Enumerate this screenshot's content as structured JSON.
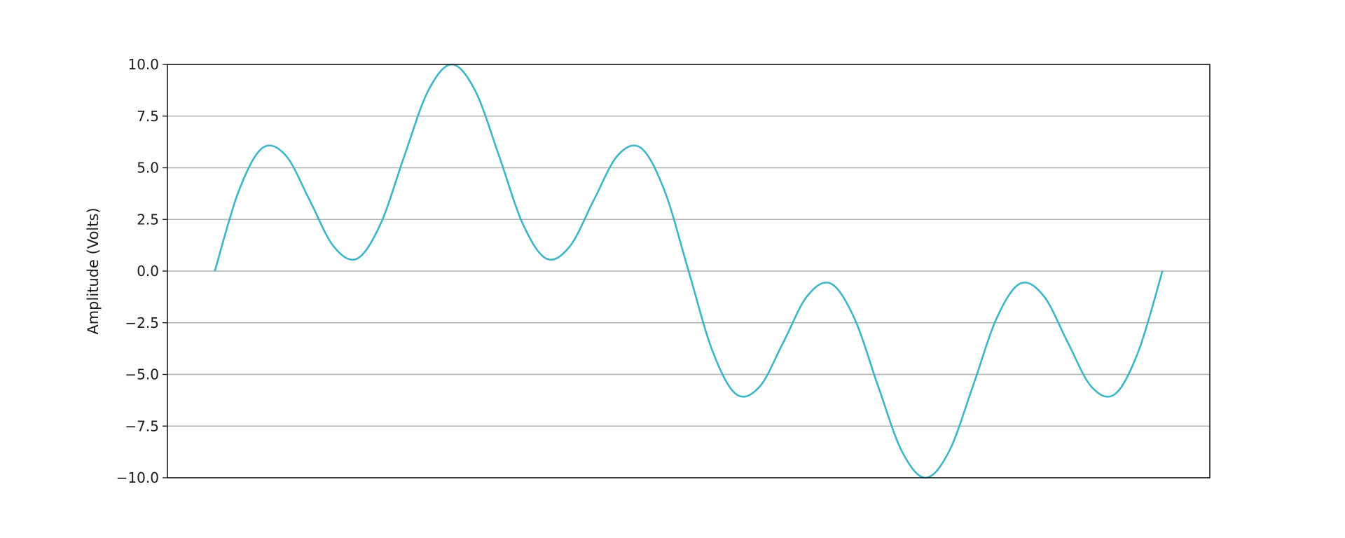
{
  "chart_data": {
    "type": "line",
    "title": "",
    "xlabel": "",
    "ylabel": "Amplitude (Volts)",
    "ylim": [
      -10,
      10
    ],
    "yticks": [
      "−10.0",
      "−7.5",
      "−5.0",
      "−2.5",
      "0.0",
      "2.5",
      "5.0",
      "7.5",
      "10.0"
    ],
    "ytick_values": [
      -10,
      -7.5,
      -5,
      -2.5,
      0,
      2.5,
      5,
      7.5,
      10
    ],
    "xticks_shown": false,
    "grid": "horizontal",
    "legend": "none",
    "line_color": "#3db5c9",
    "grid_color": "#b0b0b0",
    "series": [
      {
        "values": [
          0,
          3.84,
          5.95,
          5.59,
          3.44,
          1.22,
          0.6,
          2.29,
          5.57,
          8.71,
          10.0,
          8.71,
          5.57,
          2.29,
          0.6,
          1.22,
          3.44,
          5.59,
          5.95,
          3.84,
          0,
          -3.84,
          -5.95,
          -5.59,
          -3.44,
          -1.22,
          -0.6,
          -2.29,
          -5.57,
          -8.71,
          -10.0,
          -8.71,
          -5.57,
          -2.29,
          -0.6,
          -1.22,
          -3.44,
          -5.59,
          -5.95,
          -3.84,
          0
        ]
      }
    ]
  }
}
